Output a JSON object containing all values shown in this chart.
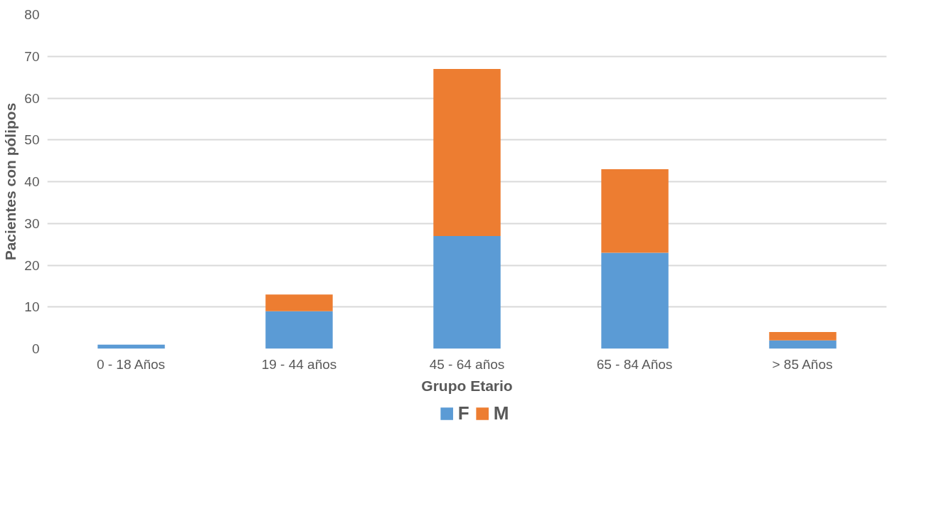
{
  "chart_data": {
    "type": "bar",
    "stacked": true,
    "xlabel": "Grupo Etario",
    "ylabel": "Pacientes con pólipos",
    "categories": [
      "0 - 18 Años",
      "19 - 44 años",
      "45 - 64 años",
      "65 - 84 Años",
      "> 85 Años"
    ],
    "series": [
      {
        "name": "F",
        "color": "#5b9bd5",
        "values": [
          1,
          9,
          27,
          23,
          2
        ]
      },
      {
        "name": "M",
        "color": "#ed7d31",
        "values": [
          0,
          4,
          40,
          20,
          2
        ]
      }
    ],
    "ylim": [
      0,
      80
    ],
    "yticks": [
      0,
      10,
      20,
      30,
      40,
      50,
      60,
      70,
      80
    ],
    "grid": "y",
    "legend": "bottom"
  }
}
